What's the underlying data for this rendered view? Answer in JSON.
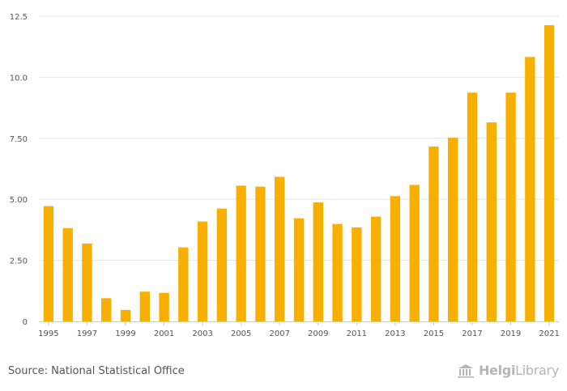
{
  "chart_data": {
    "type": "bar",
    "title": "",
    "xlabel": "",
    "ylabel": "",
    "ylim": [
      0,
      12.5
    ],
    "yticks": [
      "0",
      "2.50",
      "5.00",
      "7.50",
      "10.0",
      "12.5"
    ],
    "ytick_values": [
      0,
      2.5,
      5,
      7.5,
      10,
      12.5
    ],
    "categories": [
      "1995",
      "1996",
      "1997",
      "1998",
      "1999",
      "2000",
      "2001",
      "2002",
      "2003",
      "2004",
      "2005",
      "2006",
      "2007",
      "2008",
      "2009",
      "2010",
      "2011",
      "2012",
      "2013",
      "2014",
      "2015",
      "2016",
      "2017",
      "2018",
      "2019",
      "2020",
      "2021"
    ],
    "xtick_labels": [
      "1995",
      "1997",
      "1999",
      "2001",
      "2003",
      "2005",
      "2007",
      "2009",
      "2011",
      "2013",
      "2015",
      "2017",
      "2019",
      "2021"
    ],
    "values": [
      4.72,
      3.82,
      3.19,
      0.95,
      0.47,
      1.22,
      1.17,
      3.03,
      4.09,
      4.62,
      5.56,
      5.52,
      5.92,
      4.22,
      4.87,
      3.99,
      3.85,
      4.29,
      5.13,
      5.59,
      7.16,
      7.52,
      9.37,
      8.15,
      9.37,
      10.83,
      12.13
    ],
    "bar_color": "#f7b000",
    "grid": true
  },
  "footer": {
    "source": "Source: National Statistical Office",
    "logo_bold": "Helgi",
    "logo_light": "Library"
  },
  "colors": {
    "grid": "#e6e6e6",
    "axis": "#cccccc",
    "text": "#555555",
    "logo": "#b5b5b5"
  },
  "logo_icon": "building-columns-icon"
}
